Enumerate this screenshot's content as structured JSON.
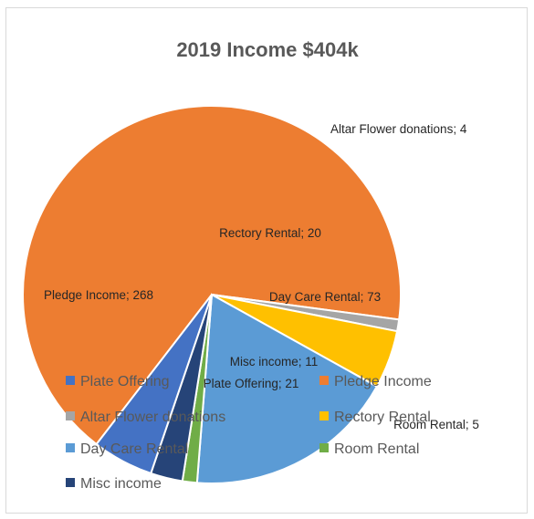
{
  "chart_data": {
    "type": "pie",
    "title": "2019 Income $404k",
    "categories": [
      "Plate Offering",
      "Pledge Income",
      "Altar Flower donations",
      "Rectory Rental",
      "Day Care Rental",
      "Room Rental",
      "Misc income"
    ],
    "values": [
      21,
      268,
      4,
      20,
      73,
      5,
      11
    ],
    "colors": [
      "#4472C4",
      "#ED7D31",
      "#A5A5A5",
      "#FFC000",
      "#5B9BD5",
      "#70AD47",
      "#264478"
    ],
    "data_labels": [
      "Plate Offering; 21",
      "Pledge Income; 268",
      "Altar Flower donations; 4",
      "Rectory Rental; 20",
      "Day Care Rental; 73",
      "Room Rental; 5",
      "Misc income; 11"
    ],
    "legend_position": "bottom",
    "legend": [
      "Plate Offering",
      "Pledge Income",
      "Altar Flower donations",
      "Rectory Rental",
      "Day Care Rental",
      "Room Rental",
      "Misc income"
    ]
  }
}
